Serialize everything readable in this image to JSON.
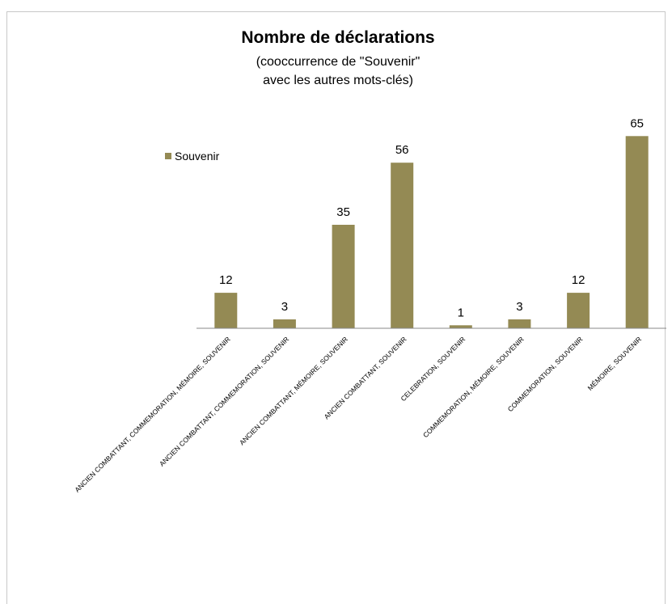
{
  "chart_data": {
    "type": "bar",
    "title": "Nombre de déclarations",
    "subtitle_lines": [
      "(cooccurrence de \"Souvenir\"",
      "avec les autres mots-clés)"
    ],
    "categories": [
      "ANCIEN COMBATTANT, COMMEMORATION, MÉMOIRE, SOUVENIR",
      "ANCIEN COMBATTANT, COMMEMORATION, SOUVENIR",
      "ANCIEN COMBATTANT, MÉMOIRE, SOUVENIR",
      "ANCIEN COMBATTANT, SOUVENIR",
      "CELEBRATION, SOUVENIR",
      "COMMEMORATION, MÉMOIRE, SOUVENIR",
      "COMMEMORATION, SOUVENIR",
      "MÉMOIRE, SOUVENIR"
    ],
    "series": [
      {
        "name": "Souvenir",
        "values": [
          12,
          3,
          35,
          56,
          1,
          3,
          12,
          65
        ],
        "color": "#948a54"
      }
    ],
    "ylim": [
      0,
      70
    ],
    "grid": false,
    "legend_position": "left",
    "data_labels": true,
    "xlabel": "",
    "ylabel": ""
  }
}
